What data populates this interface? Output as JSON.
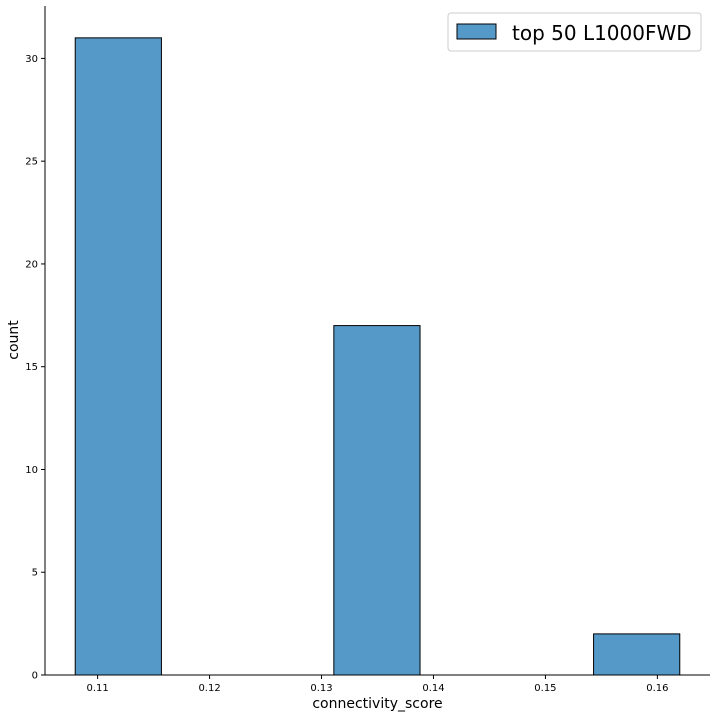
{
  "chart_data": {
    "type": "bar",
    "bins": [
      {
        "x0": 0.108,
        "x1": 0.1157,
        "count": 31
      },
      {
        "x0": 0.1157,
        "x1": 0.1234,
        "count": 0
      },
      {
        "x0": 0.1234,
        "x1": 0.1311,
        "count": 0
      },
      {
        "x0": 0.1311,
        "x1": 0.1388,
        "count": 17
      },
      {
        "x0": 0.1388,
        "x1": 0.1466,
        "count": 0
      },
      {
        "x0": 0.1466,
        "x1": 0.1543,
        "count": 0
      },
      {
        "x0": 0.1543,
        "x1": 0.162,
        "count": 2
      }
    ],
    "xlabel": "connectivity_score",
    "ylabel": "count",
    "xticks": [
      0.11,
      0.12,
      0.13,
      0.14,
      0.15,
      0.16
    ],
    "xtick_labels": [
      "0.11",
      "0.12",
      "0.13",
      "0.14",
      "0.15",
      "0.16"
    ],
    "yticks": [
      0,
      5,
      10,
      15,
      20,
      25,
      30
    ],
    "ytick_labels": [
      "0",
      "5",
      "10",
      "15",
      "20",
      "25",
      "30"
    ],
    "xlim": [
      0.1053,
      0.1647
    ],
    "ylim": [
      0,
      32.55
    ],
    "legend": {
      "position": "top-right",
      "entries": [
        {
          "label": "top 50 L1000FWD",
          "color": "#5599c8"
        }
      ]
    },
    "colors": {
      "bar_fill": "#5599c8",
      "bar_edge": "#000000"
    }
  }
}
